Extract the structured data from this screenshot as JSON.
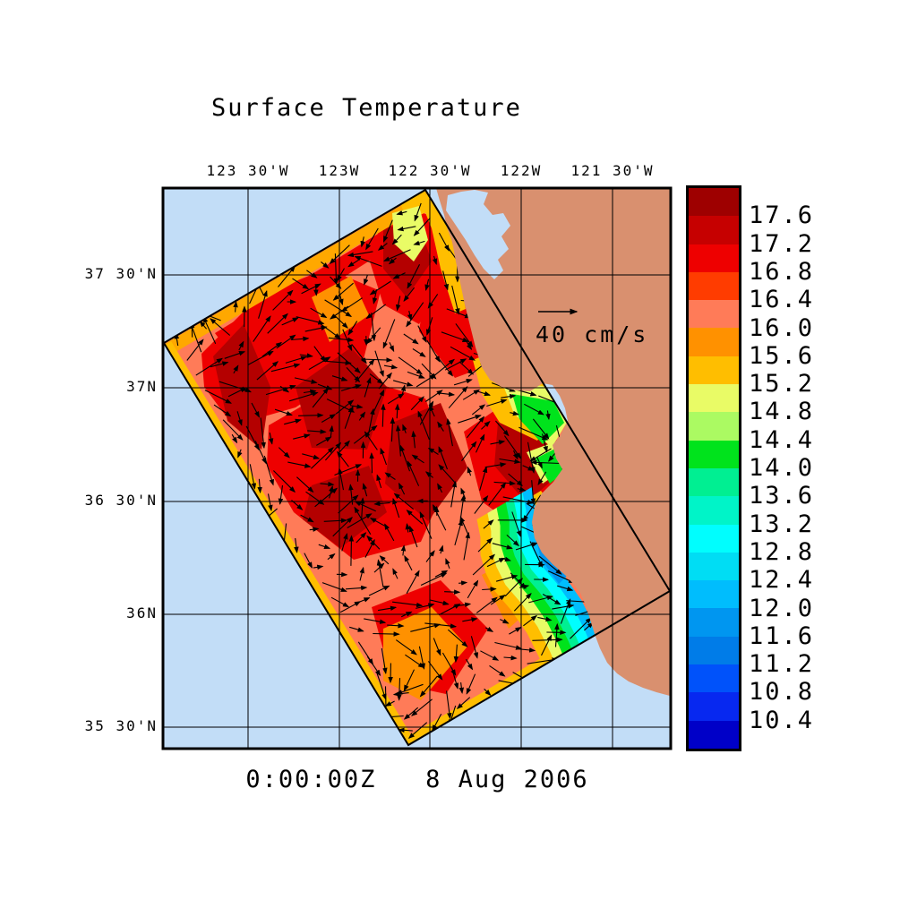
{
  "title": "Surface Temperature",
  "timestamp_label": "0:00:00Z   8 Aug 2006",
  "vector_scale_label": "40 cm/s",
  "axes": {
    "lon_ticks": [
      "123 30'W",
      "123W",
      "122 30'W",
      "122W",
      "121 30'W"
    ],
    "lat_ticks": [
      "37 30'N",
      "37N",
      "36 30'N",
      "36N",
      "35 30'N"
    ]
  },
  "colorbar": {
    "tick_labels": [
      "17.6",
      "17.2",
      "16.8",
      "16.4",
      "16.0",
      "15.6",
      "15.2",
      "14.8",
      "14.4",
      "14.0",
      "13.6",
      "13.2",
      "12.8",
      "12.4",
      "12.0",
      "11.6",
      "11.2",
      "10.8",
      "10.4"
    ],
    "segment_colors_top_to_bottom": [
      "#9E0000",
      "#C60000",
      "#EE0000",
      "#FF3C00",
      "#FF7B58",
      "#FF9100",
      "#FFBE00",
      "#E9FB66",
      "#ABFA62",
      "#00E31C",
      "#00EF92",
      "#00F4C8",
      "#00FEFE",
      "#00DDF4",
      "#00BDFD",
      "#0096F0",
      "#007CE8",
      "#0052FA",
      "#0728F0",
      "#0000C8"
    ]
  },
  "palette": {
    "ocean": "#C2DDF7",
    "land": "#D9906F",
    "background": "#FFFFFF",
    "line": "#000000"
  },
  "chart_data": {
    "type": "heatmap",
    "title": "Surface Temperature",
    "datetime_label": "0:00:00Z   8 Aug 2006",
    "x_tick_labels": [
      "123 30'W",
      "123W",
      "122 30'W",
      "122W",
      "121 30'W"
    ],
    "y_tick_labels": [
      "37 30'N",
      "37N",
      "36 30'N",
      "36N",
      "35 30'N"
    ],
    "xlim_deg_west_approx": [
      123.97,
      121.17
    ],
    "ylim_deg_north_approx": [
      35.4,
      37.89
    ],
    "grid": true,
    "colorbar_position": "right",
    "colorbar_tick_values": [
      17.6,
      17.2,
      16.8,
      16.4,
      16.0,
      15.6,
      15.2,
      14.8,
      14.4,
      14.0,
      13.6,
      13.2,
      12.8,
      12.4,
      12.0,
      11.6,
      11.2,
      10.8,
      10.4
    ],
    "colorbar_value_step": 0.4,
    "colorbar_n_segments": 20,
    "vector_reference_value": "40 cm/s",
    "field_description": "Rotated model swath of sea-surface temperature off central California (San Francisco Bay to south of Monterey Bay) overlaid with surface current vectors. Offshore swath water is warm, mostly 15.6-17.6 (red/dark-red with salmon/orange patches); a cool coastal band of 11-15 water (yellow-green-cyan-blue) hugs the coast south of Monterey Bay. Land is tan, ocean outside the swath is light blue; reference current arrow = 40 cm/s."
  }
}
